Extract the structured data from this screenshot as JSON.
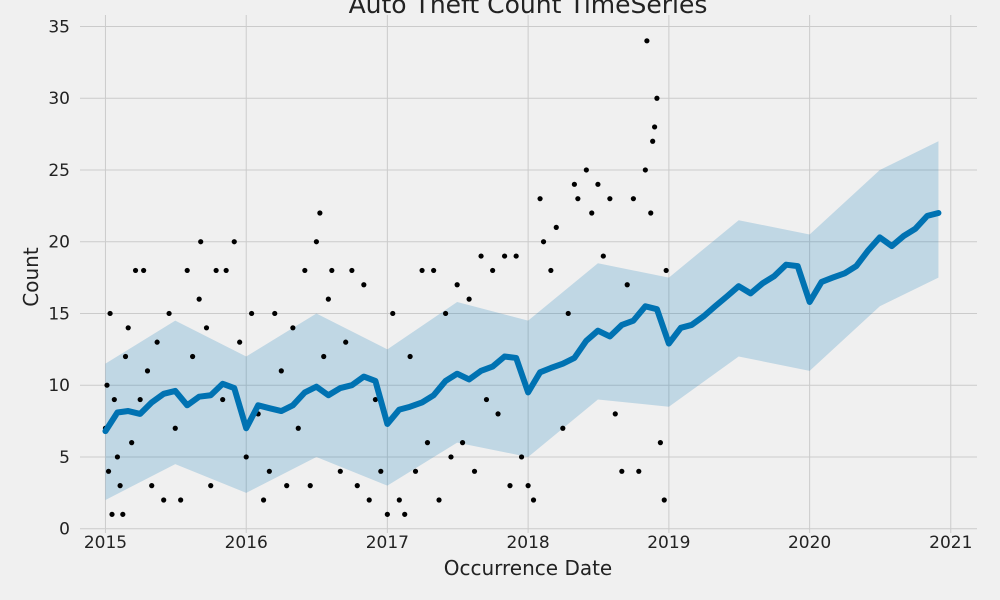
{
  "chart_data": {
    "type": "scatter",
    "title": "Auto Theft Count TimeSeries",
    "xlabel": "Occurrence Date",
    "ylabel": "Count",
    "x_ticks": [
      "2015",
      "2016",
      "2017",
      "2018",
      "2019",
      "2020",
      "2021"
    ],
    "y_ticks": [
      "0",
      "5",
      "10",
      "15",
      "20",
      "25",
      "30",
      "35"
    ],
    "xlim": [
      "2014-10-27",
      "2021-03-10"
    ],
    "ylim": [
      -0.3,
      35.8
    ],
    "grid": true,
    "style": "fivethirtyeight",
    "colors": {
      "background": "#f0f0f0",
      "grid": "#cbcbcb",
      "observed": "#000000",
      "forecast": "#0072b2",
      "interval": "#0072b2"
    },
    "series": [
      {
        "kind": "observed_points",
        "description_unit": "daily count",
        "points": [
          [
            "2015-01-01",
            7
          ],
          [
            "2015-01-05",
            10
          ],
          [
            "2015-01-09",
            4
          ],
          [
            "2015-01-13",
            15
          ],
          [
            "2015-01-18",
            1
          ],
          [
            "2015-01-24",
            9
          ],
          [
            "2015-02-01",
            5
          ],
          [
            "2015-02-08",
            3
          ],
          [
            "2015-02-15",
            1
          ],
          [
            "2015-02-22",
            12
          ],
          [
            "2015-03-01",
            14
          ],
          [
            "2015-03-10",
            6
          ],
          [
            "2015-03-20",
            18
          ],
          [
            "2015-04-01",
            9
          ],
          [
            "2015-04-10",
            18
          ],
          [
            "2015-04-20",
            11
          ],
          [
            "2015-05-01",
            3
          ],
          [
            "2015-05-15",
            13
          ],
          [
            "2015-06-01",
            2
          ],
          [
            "2015-06-15",
            15
          ],
          [
            "2015-07-01",
            7
          ],
          [
            "2015-07-15",
            2
          ],
          [
            "2015-08-01",
            18
          ],
          [
            "2015-08-15",
            12
          ],
          [
            "2015-09-01",
            16
          ],
          [
            "2015-09-05",
            20
          ],
          [
            "2015-09-20",
            14
          ],
          [
            "2015-10-01",
            3
          ],
          [
            "2015-10-15",
            18
          ],
          [
            "2015-11-01",
            9
          ],
          [
            "2015-11-10",
            18
          ],
          [
            "2015-12-01",
            20
          ],
          [
            "2015-12-15",
            13
          ],
          [
            "2016-01-01",
            5
          ],
          [
            "2016-01-15",
            15
          ],
          [
            "2016-02-01",
            8
          ],
          [
            "2016-02-15",
            2
          ],
          [
            "2016-03-01",
            4
          ],
          [
            "2016-03-15",
            15
          ],
          [
            "2016-04-01",
            11
          ],
          [
            "2016-04-15",
            3
          ],
          [
            "2016-05-01",
            14
          ],
          [
            "2016-05-15",
            7
          ],
          [
            "2016-06-01",
            18
          ],
          [
            "2016-06-15",
            3
          ],
          [
            "2016-07-01",
            20
          ],
          [
            "2016-07-10",
            22
          ],
          [
            "2016-07-20",
            12
          ],
          [
            "2016-08-01",
            16
          ],
          [
            "2016-08-10",
            18
          ],
          [
            "2016-09-01",
            4
          ],
          [
            "2016-09-15",
            13
          ],
          [
            "2016-10-01",
            18
          ],
          [
            "2016-10-15",
            3
          ],
          [
            "2016-11-01",
            17
          ],
          [
            "2016-11-15",
            2
          ],
          [
            "2016-12-01",
            9
          ],
          [
            "2016-12-15",
            4
          ],
          [
            "2017-01-01",
            1
          ],
          [
            "2017-01-15",
            15
          ],
          [
            "2017-02-01",
            2
          ],
          [
            "2017-02-15",
            1
          ],
          [
            "2017-03-01",
            12
          ],
          [
            "2017-03-15",
            4
          ],
          [
            "2017-04-01",
            18
          ],
          [
            "2017-04-15",
            6
          ],
          [
            "2017-05-01",
            18
          ],
          [
            "2017-05-15",
            2
          ],
          [
            "2017-06-01",
            15
          ],
          [
            "2017-06-15",
            5
          ],
          [
            "2017-07-01",
            17
          ],
          [
            "2017-07-15",
            6
          ],
          [
            "2017-08-01",
            16
          ],
          [
            "2017-08-15",
            4
          ],
          [
            "2017-09-01",
            19
          ],
          [
            "2017-09-15",
            9
          ],
          [
            "2017-10-01",
            18
          ],
          [
            "2017-10-15",
            8
          ],
          [
            "2017-11-01",
            19
          ],
          [
            "2017-11-15",
            3
          ],
          [
            "2017-12-01",
            19
          ],
          [
            "2017-12-15",
            5
          ],
          [
            "2018-01-01",
            3
          ],
          [
            "2018-01-15",
            2
          ],
          [
            "2018-02-01",
            23
          ],
          [
            "2018-02-10",
            20
          ],
          [
            "2018-03-01",
            18
          ],
          [
            "2018-03-15",
            21
          ],
          [
            "2018-04-01",
            7
          ],
          [
            "2018-04-15",
            15
          ],
          [
            "2018-05-01",
            24
          ],
          [
            "2018-05-10",
            23
          ],
          [
            "2018-06-01",
            25
          ],
          [
            "2018-06-15",
            22
          ],
          [
            "2018-07-01",
            24
          ],
          [
            "2018-07-15",
            19
          ],
          [
            "2018-08-01",
            23
          ],
          [
            "2018-08-15",
            8
          ],
          [
            "2018-09-01",
            4
          ],
          [
            "2018-09-15",
            17
          ],
          [
            "2018-10-01",
            23
          ],
          [
            "2018-10-15",
            4
          ],
          [
            "2018-11-01",
            25
          ],
          [
            "2018-11-05",
            34
          ],
          [
            "2018-11-15",
            22
          ],
          [
            "2018-11-20",
            27
          ],
          [
            "2018-11-25",
            28
          ],
          [
            "2018-12-01",
            30
          ],
          [
            "2018-12-10",
            6
          ],
          [
            "2018-12-20",
            2
          ],
          [
            "2018-12-25",
            18
          ]
        ]
      },
      {
        "kind": "forecast",
        "description_unit": "predicted count (yhat)",
        "points": [
          [
            "2015-01-01",
            6.8
          ],
          [
            "2015-02-01",
            8.1
          ],
          [
            "2015-03-01",
            8.2
          ],
          [
            "2015-04-01",
            8.0
          ],
          [
            "2015-05-01",
            8.8
          ],
          [
            "2015-06-01",
            9.4
          ],
          [
            "2015-07-01",
            9.6
          ],
          [
            "2015-08-01",
            8.6
          ],
          [
            "2015-09-01",
            9.2
          ],
          [
            "2015-10-01",
            9.3
          ],
          [
            "2015-11-01",
            10.1
          ],
          [
            "2015-12-01",
            9.8
          ],
          [
            "2016-01-01",
            7.0
          ],
          [
            "2016-02-01",
            8.6
          ],
          [
            "2016-03-01",
            8.4
          ],
          [
            "2016-04-01",
            8.2
          ],
          [
            "2016-05-01",
            8.6
          ],
          [
            "2016-06-01",
            9.5
          ],
          [
            "2016-07-01",
            9.9
          ],
          [
            "2016-08-01",
            9.3
          ],
          [
            "2016-09-01",
            9.8
          ],
          [
            "2016-10-01",
            10.0
          ],
          [
            "2016-11-01",
            10.6
          ],
          [
            "2016-12-01",
            10.3
          ],
          [
            "2017-01-01",
            7.3
          ],
          [
            "2017-02-01",
            8.3
          ],
          [
            "2017-03-01",
            8.5
          ],
          [
            "2017-04-01",
            8.8
          ],
          [
            "2017-05-01",
            9.3
          ],
          [
            "2017-06-01",
            10.3
          ],
          [
            "2017-07-01",
            10.8
          ],
          [
            "2017-08-01",
            10.4
          ],
          [
            "2017-09-01",
            11.0
          ],
          [
            "2017-10-01",
            11.3
          ],
          [
            "2017-11-01",
            12.0
          ],
          [
            "2017-12-01",
            11.9
          ],
          [
            "2018-01-01",
            9.5
          ],
          [
            "2018-02-01",
            10.9
          ],
          [
            "2018-03-01",
            11.2
          ],
          [
            "2018-04-01",
            11.5
          ],
          [
            "2018-05-01",
            11.9
          ],
          [
            "2018-06-01",
            13.1
          ],
          [
            "2018-07-01",
            13.8
          ],
          [
            "2018-08-01",
            13.4
          ],
          [
            "2018-09-01",
            14.2
          ],
          [
            "2018-10-01",
            14.5
          ],
          [
            "2018-11-01",
            15.5
          ],
          [
            "2018-12-01",
            15.3
          ],
          [
            "2019-01-01",
            12.9
          ],
          [
            "2019-02-01",
            14.0
          ],
          [
            "2019-03-01",
            14.2
          ],
          [
            "2019-04-01",
            14.8
          ],
          [
            "2019-05-01",
            15.5
          ],
          [
            "2019-06-01",
            16.2
          ],
          [
            "2019-07-01",
            16.9
          ],
          [
            "2019-08-01",
            16.4
          ],
          [
            "2019-09-01",
            17.1
          ],
          [
            "2019-10-01",
            17.6
          ],
          [
            "2019-11-01",
            18.4
          ],
          [
            "2019-12-01",
            18.3
          ],
          [
            "2020-01-01",
            15.8
          ],
          [
            "2020-02-01",
            17.2
          ],
          [
            "2020-03-01",
            17.5
          ],
          [
            "2020-04-01",
            17.8
          ],
          [
            "2020-05-01",
            18.3
          ],
          [
            "2020-06-01",
            19.4
          ],
          [
            "2020-07-01",
            20.3
          ],
          [
            "2020-08-01",
            19.7
          ],
          [
            "2020-09-01",
            20.4
          ],
          [
            "2020-10-01",
            20.9
          ],
          [
            "2020-11-01",
            21.8
          ],
          [
            "2020-11-30",
            22.0
          ]
        ]
      },
      {
        "kind": "uncertainty_interval",
        "description_unit": "lower / upper bound",
        "points": [
          [
            "2015-01-01",
            2.0,
            11.5
          ],
          [
            "2015-07-01",
            4.5,
            14.5
          ],
          [
            "2016-01-01",
            2.5,
            12.0
          ],
          [
            "2016-07-01",
            5.0,
            15.0
          ],
          [
            "2017-01-01",
            3.0,
            12.5
          ],
          [
            "2017-07-01",
            6.0,
            15.8
          ],
          [
            "2018-01-01",
            5.0,
            14.5
          ],
          [
            "2018-07-01",
            9.0,
            18.5
          ],
          [
            "2019-01-01",
            8.5,
            17.5
          ],
          [
            "2019-07-01",
            12.0,
            21.5
          ],
          [
            "2020-01-01",
            11.0,
            20.5
          ],
          [
            "2020-07-01",
            15.5,
            25.0
          ],
          [
            "2020-11-30",
            17.5,
            27.0
          ]
        ]
      }
    ]
  }
}
